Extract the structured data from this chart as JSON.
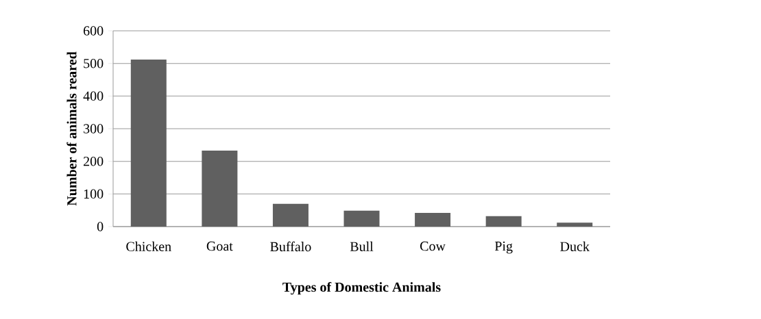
{
  "chart_data": {
    "type": "bar",
    "xlabel": "Types of Domestic Animals",
    "ylabel": "Number of animals reared",
    "categories": [
      "Chicken",
      "Goat",
      "Buffalo",
      "Bull",
      "Cow",
      "Pig",
      "Duck"
    ],
    "values": [
      512,
      233,
      70,
      49,
      42,
      32,
      12
    ],
    "color": "#606060",
    "ylim": [
      0,
      600
    ],
    "yticks": [
      0,
      100,
      200,
      300,
      400,
      500,
      600
    ],
    "grid": "y"
  }
}
